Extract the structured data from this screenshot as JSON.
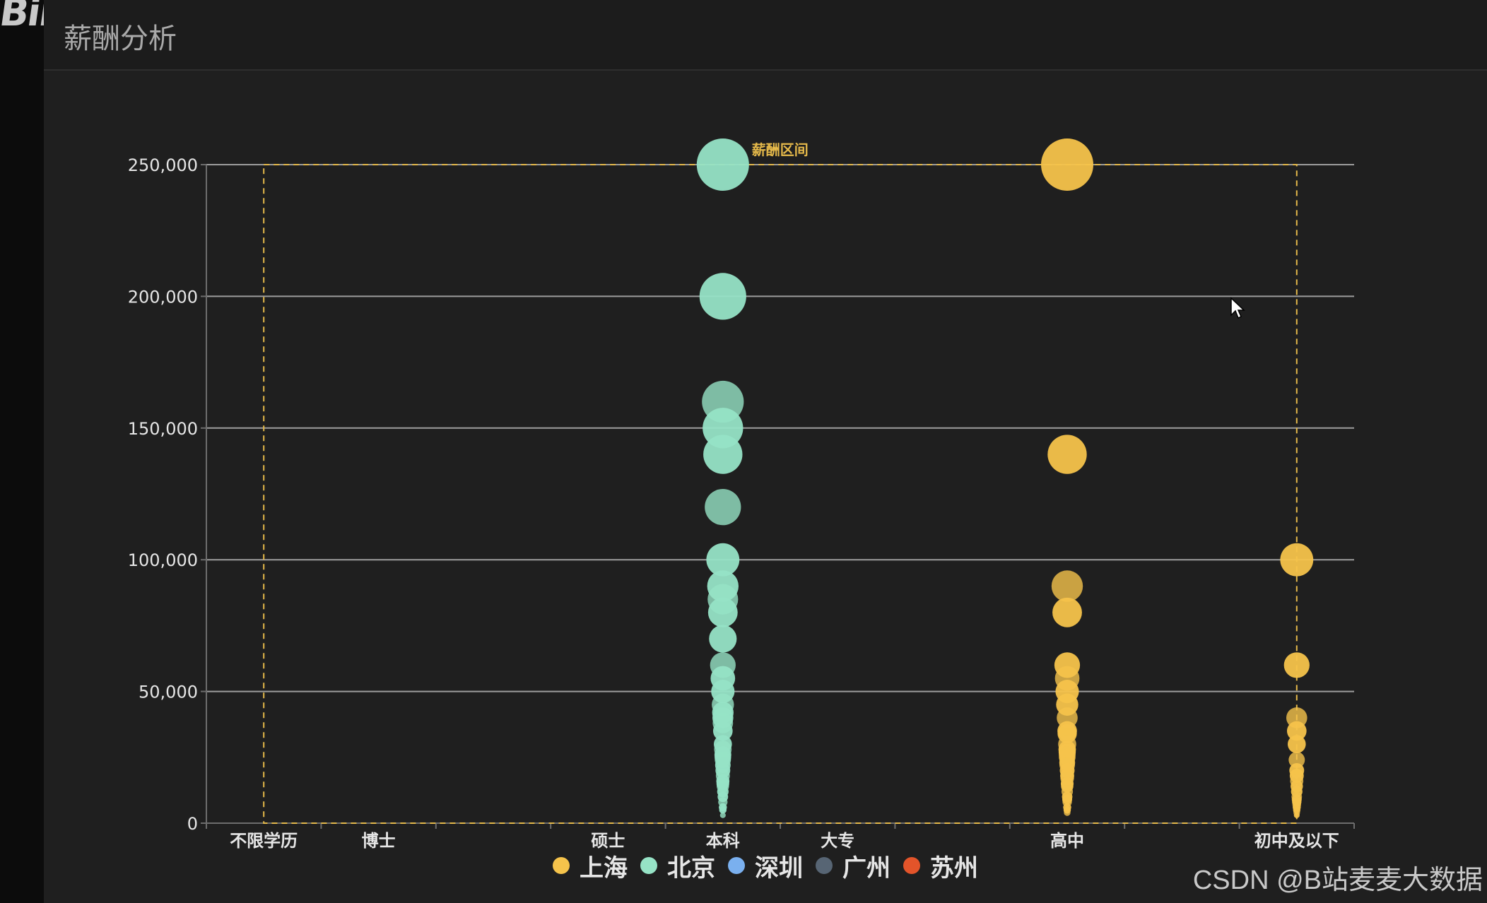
{
  "brand": {
    "logo_text": "Bili"
  },
  "header": {
    "title": "薪酬分析"
  },
  "watermark": "CSDN @B站麦麦大数据",
  "colors": {
    "shanghai": "#f5c34b",
    "beijing": "#96e3c6",
    "shenzhen": "#7ab0ef",
    "guangzhou": "#576574",
    "suzhou": "#e3542a",
    "mark_line": "#e5b94a",
    "grid": "#9d9d9d",
    "axis_text": "#e6e6e6"
  },
  "legend": [
    {
      "label": "上海",
      "color": "#f5c34b"
    },
    {
      "label": "北京",
      "color": "#96e3c6"
    },
    {
      "label": "深圳",
      "color": "#7ab0ef"
    },
    {
      "label": "广州",
      "color": "#576574"
    },
    {
      "label": "苏州",
      "color": "#e3542a"
    }
  ],
  "chart_data": {
    "type": "scatter",
    "title": "薪酬分析",
    "categories": [
      "不限学历",
      "博士",
      "硕士",
      "本科",
      "大专",
      "高中",
      "初中及以下"
    ],
    "category_positions": [
      0.5,
      1.5,
      3.5,
      4.5,
      5.5,
      7.5,
      9.5
    ],
    "x_range": [
      0,
      10
    ],
    "y_ticks": [
      0,
      50000,
      100000,
      150000,
      200000,
      250000
    ],
    "y_tick_labels": [
      "0",
      "50,000",
      "100,000",
      "150,000",
      "200,000",
      "250,000"
    ],
    "ylim": [
      0,
      250000
    ],
    "grid": true,
    "legend_position": "bottom-center",
    "mark_area_label": "薪酬区间",
    "mark_area": {
      "x_from": "不限学历",
      "x_to": "初中及以下",
      "y_from": 0,
      "y_to": 250000
    },
    "series": [
      {
        "name": "北京",
        "category": "本科",
        "values": [
          250000,
          200000,
          160000,
          150000,
          140000,
          120000,
          100000,
          90000,
          85000,
          80000,
          70000,
          60000,
          55000,
          50000,
          45000,
          42000,
          40000,
          38000,
          35000,
          30000,
          28000,
          26000,
          25000,
          24000,
          22000,
          20000,
          18000,
          16000,
          15000,
          14000,
          12000,
          10000,
          8000,
          6000,
          5000,
          3000
        ]
      },
      {
        "name": "上海",
        "category": "高中",
        "values": [
          250000,
          140000,
          90000,
          80000,
          60000,
          55000,
          50000,
          45000,
          40000,
          35000,
          34000,
          30000,
          28000,
          27000,
          26000,
          25000,
          23000,
          22000,
          20000,
          18000,
          17000,
          15000,
          14000,
          12000,
          10000,
          9000,
          8000,
          6000,
          5000,
          4000
        ]
      },
      {
        "name": "上海",
        "category": "初中及以下",
        "values": [
          100000,
          60000,
          40000,
          35000,
          30000,
          24000,
          20000,
          18000,
          16000,
          14000,
          12000,
          10000,
          9000,
          8000,
          7000,
          6000,
          5000,
          4000,
          3000
        ]
      }
    ]
  }
}
